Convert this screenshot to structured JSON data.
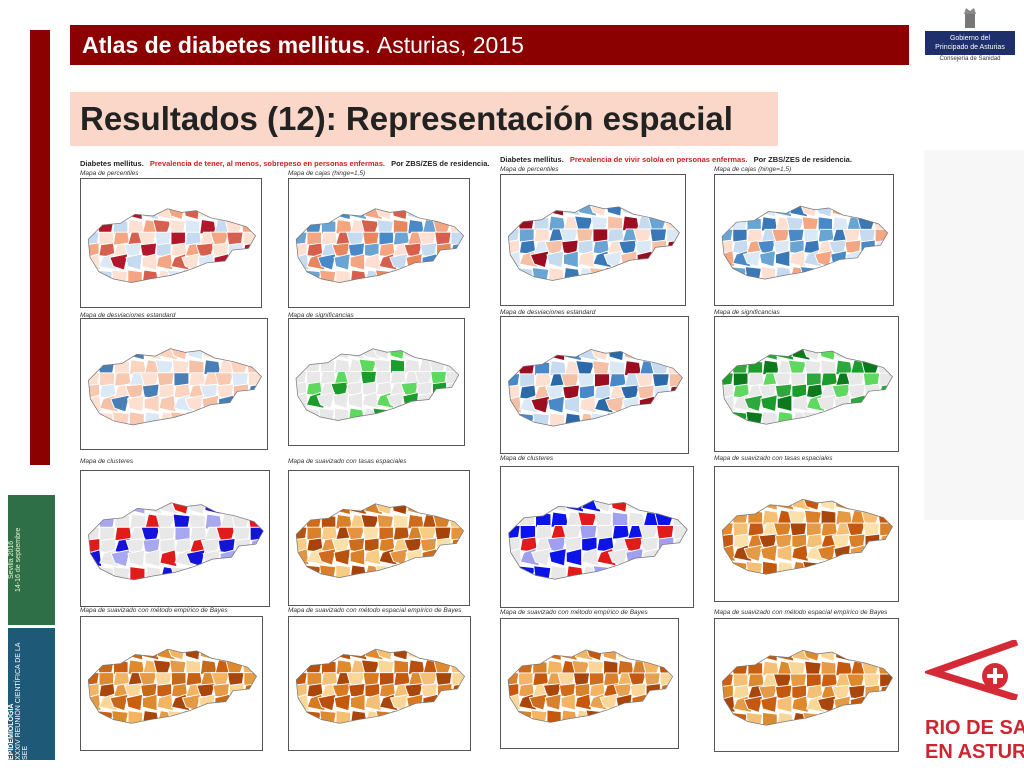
{
  "header": {
    "title_bold": "Atlas de diabetes mellitus",
    "title_rest": "Asturias, 2015"
  },
  "subtitle": "Resultados (12): Representación espacial",
  "gov_logo": {
    "line1": "Gobierno del",
    "line2": "Principado de Asturias",
    "line3": "Consejería de Sanidad"
  },
  "panels": [
    {
      "header": {
        "prefix": "Diabetes mellitus.",
        "highlight": "Prevalencia de tener, al menos, sobrepeso en personas enfermas.",
        "suffix": "Por ZBS/ZES de residencia."
      }
    },
    {
      "header": {
        "prefix": "Diabetes mellitus.",
        "highlight": "Prevalencia de vivir solo/a  en personas enfermas.",
        "suffix": "Por ZBS/ZES de residencia."
      }
    }
  ],
  "captions": {
    "percentiles": "Mapa de percentiles",
    "cajas": "Mapa de cajas (hinge=1,5)",
    "desviaciones": "Mapa de desviaciones estandard",
    "significancias": "Mapa de significancias",
    "clusteres": "Mapa de clusteres",
    "suavizado_tasas": "Mapa de suavizado con tasas espaciales",
    "bayes": "Mapa de suavizado con método empírico de Bayes",
    "bayes_espacial": "Mapa de suavizado con método espacial empírico de Bayes"
  },
  "poster": {
    "text1": "Sevilla 2016",
    "text2": "14-16 de septiembre"
  },
  "poster2": {
    "text1": "EPIDEMIOLOGÍA",
    "text2": "XXXIV REUNIÓN CIENTÍFICA DE LA SEE"
  },
  "bottom_logo": {
    "line1": "RIO DE SALUD",
    "line2": "EN ASTURIAS"
  },
  "colors": {
    "accent": "#8b0000",
    "subtitle_bg": "#fad7c8"
  }
}
